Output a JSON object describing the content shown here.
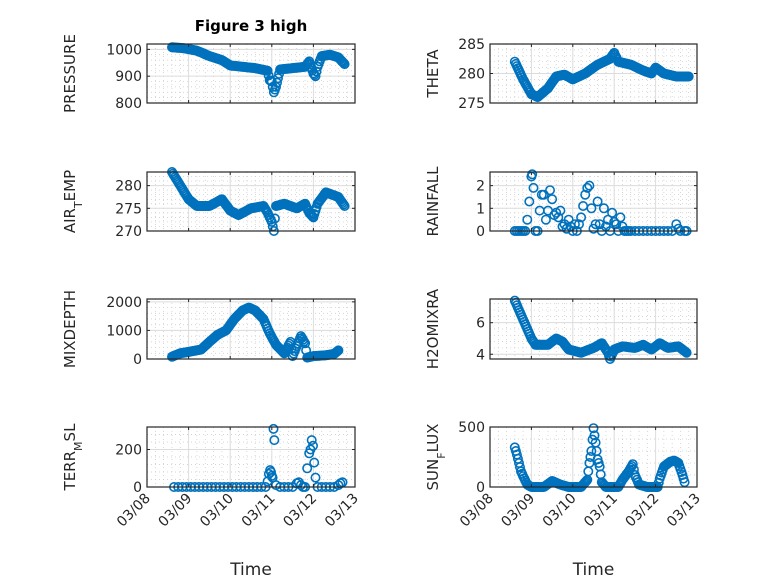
{
  "figure": {
    "title": "Figure 3 high"
  },
  "chart_data": [
    {
      "type": "scatter",
      "title": "Figure 3 high",
      "ylabel": "PRESSURE",
      "xlabel": "",
      "ylim": [
        800,
        1020
      ],
      "yticks": [
        800,
        900,
        1000
      ],
      "xlim": [
        "03/08",
        "03/13"
      ],
      "xticks": [
        "03/08",
        "03/09",
        "03/10",
        "03/11",
        "03/12",
        "03/13"
      ],
      "show_xticklabels": false,
      "grid": true,
      "marker": "circle",
      "color": "#0072BD",
      "key_points": [
        [
          8.6,
          1008
        ],
        [
          8.9,
          1004
        ],
        [
          9.2,
          995
        ],
        [
          9.5,
          975
        ],
        [
          9.8,
          960
        ],
        [
          10.0,
          940
        ],
        [
          10.3,
          935
        ],
        [
          10.6,
          930
        ],
        [
          10.9,
          920
        ],
        [
          10.95,
          885
        ],
        [
          11.0,
          880
        ],
        [
          11.05,
          840
        ],
        [
          11.1,
          860
        ],
        [
          11.2,
          925
        ],
        [
          11.5,
          930
        ],
        [
          11.8,
          935
        ],
        [
          11.9,
          955
        ],
        [
          12.0,
          910
        ],
        [
          12.05,
          900
        ],
        [
          12.1,
          935
        ],
        [
          12.2,
          975
        ],
        [
          12.4,
          980
        ],
        [
          12.6,
          970
        ],
        [
          12.75,
          945
        ]
      ]
    },
    {
      "type": "scatter",
      "title": "",
      "ylabel": "THETA",
      "xlabel": "",
      "ylim": [
        275,
        285
      ],
      "yticks": [
        275,
        280,
        285
      ],
      "xlim": [
        "03/08",
        "03/13"
      ],
      "xticks": [
        "03/08",
        "03/09",
        "03/10",
        "03/11",
        "03/12",
        "03/13"
      ],
      "show_xticklabels": false,
      "grid": true,
      "marker": "circle",
      "color": "#0072BD",
      "key_points": [
        [
          8.6,
          282
        ],
        [
          8.8,
          279
        ],
        [
          9.0,
          276.5
        ],
        [
          9.15,
          276
        ],
        [
          9.4,
          277.5
        ],
        [
          9.6,
          279.5
        ],
        [
          9.8,
          279.8
        ],
        [
          10.0,
          279
        ],
        [
          10.3,
          280
        ],
        [
          10.6,
          281.5
        ],
        [
          10.9,
          282.5
        ],
        [
          11.0,
          283.5
        ],
        [
          11.1,
          282
        ],
        [
          11.4,
          281.5
        ],
        [
          11.7,
          280.5
        ],
        [
          11.9,
          280
        ],
        [
          12.0,
          281
        ],
        [
          12.2,
          280
        ],
        [
          12.5,
          279.5
        ],
        [
          12.8,
          279.5
        ]
      ]
    },
    {
      "type": "scatter",
      "title": "",
      "ylabel": "AIR_TEMP",
      "xlabel": "",
      "ylim": [
        270,
        283
      ],
      "yticks": [
        270,
        275,
        280
      ],
      "xlim": [
        "03/08",
        "03/13"
      ],
      "xticks": [
        "03/08",
        "03/09",
        "03/10",
        "03/11",
        "03/12",
        "03/13"
      ],
      "show_xticklabels": false,
      "grid": true,
      "marker": "circle",
      "color": "#0072BD",
      "key_points": [
        [
          8.6,
          283
        ],
        [
          8.8,
          280
        ],
        [
          9.0,
          277
        ],
        [
          9.2,
          275.5
        ],
        [
          9.5,
          275.5
        ],
        [
          9.8,
          277
        ],
        [
          10.0,
          274.5
        ],
        [
          10.2,
          273.5
        ],
        [
          10.5,
          275
        ],
        [
          10.8,
          275.5
        ],
        [
          10.9,
          274
        ],
        [
          11.0,
          272
        ],
        [
          11.05,
          270
        ],
        [
          11.1,
          275.5
        ],
        [
          11.3,
          276
        ],
        [
          11.6,
          275
        ],
        [
          11.8,
          276
        ],
        [
          11.9,
          274
        ],
        [
          12.0,
          273
        ],
        [
          12.1,
          276
        ],
        [
          12.3,
          278.5
        ],
        [
          12.6,
          277.5
        ],
        [
          12.75,
          275.5
        ]
      ]
    },
    {
      "type": "scatter",
      "title": "",
      "ylabel": "RAINFALL",
      "xlabel": "",
      "ylim": [
        0,
        2.6
      ],
      "yticks": [
        0,
        1,
        2
      ],
      "xlim": [
        "03/08",
        "03/13"
      ],
      "xticks": [
        "03/08",
        "03/09",
        "03/10",
        "03/11",
        "03/12",
        "03/13"
      ],
      "show_xticklabels": false,
      "grid": true,
      "marker": "circle",
      "color": "#0072BD",
      "points": [
        [
          8.6,
          0
        ],
        [
          8.65,
          0
        ],
        [
          8.7,
          0
        ],
        [
          8.75,
          0
        ],
        [
          8.8,
          0
        ],
        [
          8.85,
          0
        ],
        [
          8.9,
          0.5
        ],
        [
          8.95,
          1.3
        ],
        [
          9.0,
          2.4
        ],
        [
          9.02,
          2.5
        ],
        [
          9.05,
          1.9
        ],
        [
          9.1,
          0
        ],
        [
          9.15,
          0
        ],
        [
          9.2,
          0.9
        ],
        [
          9.25,
          1.6
        ],
        [
          9.3,
          1.6
        ],
        [
          9.35,
          0.5
        ],
        [
          9.4,
          0.9
        ],
        [
          9.45,
          1.8
        ],
        [
          9.5,
          1.4
        ],
        [
          9.55,
          0.7
        ],
        [
          9.6,
          0.8
        ],
        [
          9.65,
          0.6
        ],
        [
          9.7,
          0.9
        ],
        [
          9.75,
          0.2
        ],
        [
          9.8,
          0.3
        ],
        [
          9.85,
          0.1
        ],
        [
          9.9,
          0.5
        ],
        [
          9.95,
          0.2
        ],
        [
          10.0,
          0
        ],
        [
          10.05,
          0.3
        ],
        [
          10.1,
          0
        ],
        [
          10.15,
          0.3
        ],
        [
          10.2,
          0.6
        ],
        [
          10.25,
          1.1
        ],
        [
          10.3,
          1.6
        ],
        [
          10.35,
          1.9
        ],
        [
          10.4,
          2.0
        ],
        [
          10.45,
          1.0
        ],
        [
          10.5,
          0.1
        ],
        [
          10.55,
          0.3
        ],
        [
          10.6,
          1.3
        ],
        [
          10.65,
          0.3
        ],
        [
          10.7,
          0
        ],
        [
          10.75,
          1.0
        ],
        [
          10.8,
          0.2
        ],
        [
          10.85,
          0.5
        ],
        [
          10.9,
          0
        ],
        [
          10.95,
          0.8
        ],
        [
          11.0,
          0.4
        ],
        [
          11.05,
          0.3
        ],
        [
          11.1,
          0
        ],
        [
          11.15,
          0.6
        ],
        [
          11.2,
          0.2
        ],
        [
          11.25,
          0
        ],
        [
          11.3,
          0
        ],
        [
          11.35,
          0
        ],
        [
          11.4,
          0
        ],
        [
          11.5,
          0
        ],
        [
          11.6,
          0
        ],
        [
          11.7,
          0
        ],
        [
          11.8,
          0
        ],
        [
          11.9,
          0
        ],
        [
          12.0,
          0
        ],
        [
          12.1,
          0
        ],
        [
          12.2,
          0
        ],
        [
          12.3,
          0
        ],
        [
          12.4,
          0
        ],
        [
          12.5,
          0.3
        ],
        [
          12.55,
          0.1
        ],
        [
          12.6,
          0
        ],
        [
          12.7,
          0
        ],
        [
          12.75,
          0
        ]
      ]
    },
    {
      "type": "scatter",
      "title": "",
      "ylabel": "MIXDEPTH",
      "xlabel": "",
      "ylim": [
        0,
        2100
      ],
      "yticks": [
        0,
        1000,
        2000
      ],
      "xlim": [
        "03/08",
        "03/13"
      ],
      "xticks": [
        "03/08",
        "03/09",
        "03/10",
        "03/11",
        "03/12",
        "03/13"
      ],
      "show_xticklabels": false,
      "grid": true,
      "marker": "circle",
      "color": "#0072BD",
      "key_points": [
        [
          8.6,
          80
        ],
        [
          8.8,
          200
        ],
        [
          9.0,
          250
        ],
        [
          9.3,
          330
        ],
        [
          9.5,
          600
        ],
        [
          9.7,
          850
        ],
        [
          9.9,
          1000
        ],
        [
          10.1,
          1400
        ],
        [
          10.3,
          1700
        ],
        [
          10.45,
          1800
        ],
        [
          10.6,
          1700
        ],
        [
          10.8,
          1400
        ],
        [
          10.95,
          900
        ],
        [
          11.1,
          500
        ],
        [
          11.3,
          200
        ],
        [
          11.45,
          600
        ],
        [
          11.5,
          100
        ],
        [
          11.7,
          800
        ],
        [
          11.8,
          550
        ],
        [
          11.85,
          50
        ],
        [
          12.0,
          100
        ],
        [
          12.3,
          130
        ],
        [
          12.5,
          180
        ],
        [
          12.6,
          300
        ]
      ]
    },
    {
      "type": "scatter",
      "title": "",
      "ylabel": "H2OMIXRA",
      "xlabel": "",
      "ylim": [
        3.7,
        7.5
      ],
      "yticks": [
        4,
        6
      ],
      "xlim": [
        "03/08",
        "03/13"
      ],
      "xticks": [
        "03/08",
        "03/09",
        "03/10",
        "03/11",
        "03/12",
        "03/13"
      ],
      "show_xticklabels": false,
      "grid": true,
      "marker": "circle",
      "color": "#0072BD",
      "key_points": [
        [
          8.6,
          7.4
        ],
        [
          8.8,
          6.2
        ],
        [
          9.0,
          5.0
        ],
        [
          9.1,
          4.6
        ],
        [
          9.4,
          4.6
        ],
        [
          9.6,
          5.0
        ],
        [
          9.75,
          4.8
        ],
        [
          9.9,
          4.3
        ],
        [
          10.2,
          4.1
        ],
        [
          10.5,
          4.4
        ],
        [
          10.7,
          4.7
        ],
        [
          10.85,
          4.1
        ],
        [
          10.9,
          3.7
        ],
        [
          11.0,
          4.3
        ],
        [
          11.2,
          4.5
        ],
        [
          11.5,
          4.4
        ],
        [
          11.7,
          4.6
        ],
        [
          11.9,
          4.3
        ],
        [
          12.1,
          4.7
        ],
        [
          12.3,
          4.4
        ],
        [
          12.55,
          4.5
        ],
        [
          12.75,
          4.1
        ]
      ]
    },
    {
      "type": "scatter",
      "title": "",
      "ylabel": "TERR_MSL",
      "xlabel": "Time",
      "ylim": [
        0,
        320
      ],
      "yticks": [
        0,
        200
      ],
      "xlim": [
        "03/08",
        "03/13"
      ],
      "xticks": [
        "03/08",
        "03/09",
        "03/10",
        "03/11",
        "03/12",
        "03/13"
      ],
      "show_xticklabels": true,
      "grid": true,
      "marker": "circle",
      "color": "#0072BD",
      "points": [
        [
          8.65,
          0
        ],
        [
          8.75,
          0
        ],
        [
          8.85,
          0
        ],
        [
          8.95,
          0
        ],
        [
          9.05,
          0
        ],
        [
          9.15,
          0
        ],
        [
          9.25,
          0
        ],
        [
          9.35,
          0
        ],
        [
          9.45,
          0
        ],
        [
          9.55,
          0
        ],
        [
          9.65,
          0
        ],
        [
          9.75,
          0
        ],
        [
          9.85,
          0
        ],
        [
          9.95,
          0
        ],
        [
          10.05,
          0
        ],
        [
          10.15,
          0
        ],
        [
          10.25,
          0
        ],
        [
          10.35,
          0
        ],
        [
          10.45,
          0
        ],
        [
          10.55,
          0
        ],
        [
          10.65,
          0
        ],
        [
          10.75,
          0
        ],
        [
          10.85,
          0
        ],
        [
          10.9,
          30
        ],
        [
          10.93,
          70
        ],
        [
          10.96,
          90
        ],
        [
          10.98,
          80
        ],
        [
          11.0,
          60
        ],
        [
          11.02,
          50
        ],
        [
          11.04,
          310
        ],
        [
          11.06,
          250
        ],
        [
          11.1,
          10
        ],
        [
          11.2,
          0
        ],
        [
          11.3,
          0
        ],
        [
          11.4,
          0
        ],
        [
          11.5,
          0
        ],
        [
          11.6,
          20
        ],
        [
          11.65,
          25
        ],
        [
          11.7,
          10
        ],
        [
          11.75,
          0
        ],
        [
          11.8,
          0
        ],
        [
          11.85,
          100
        ],
        [
          11.9,
          180
        ],
        [
          11.93,
          200
        ],
        [
          11.96,
          250
        ],
        [
          11.99,
          220
        ],
        [
          12.02,
          130
        ],
        [
          12.05,
          50
        ],
        [
          12.1,
          0
        ],
        [
          12.2,
          0
        ],
        [
          12.3,
          0
        ],
        [
          12.4,
          0
        ],
        [
          12.5,
          0
        ],
        [
          12.6,
          10
        ],
        [
          12.65,
          20
        ],
        [
          12.7,
          25
        ]
      ]
    },
    {
      "type": "scatter",
      "title": "",
      "ylabel": "SUN_FLUX",
      "xlabel": "Time",
      "ylim": [
        0,
        500
      ],
      "yticks": [
        0,
        500
      ],
      "xlim": [
        "03/08",
        "03/13"
      ],
      "xticks": [
        "03/08",
        "03/09",
        "03/10",
        "03/11",
        "03/12",
        "03/13"
      ],
      "show_xticklabels": true,
      "grid": true,
      "marker": "circle",
      "color": "#0072BD",
      "key_points": [
        [
          8.6,
          330
        ],
        [
          8.65,
          270
        ],
        [
          8.7,
          200
        ],
        [
          8.75,
          130
        ],
        [
          8.8,
          90
        ],
        [
          8.9,
          20
        ],
        [
          9.0,
          0
        ],
        [
          9.3,
          0
        ],
        [
          9.5,
          50
        ],
        [
          9.7,
          20
        ],
        [
          9.9,
          0
        ],
        [
          10.2,
          0
        ],
        [
          10.35,
          60
        ],
        [
          10.4,
          200
        ],
        [
          10.45,
          300
        ],
        [
          10.5,
          490
        ],
        [
          10.55,
          370
        ],
        [
          10.6,
          230
        ],
        [
          10.65,
          170
        ],
        [
          10.7,
          40
        ],
        [
          10.8,
          0
        ],
        [
          11.1,
          0
        ],
        [
          11.2,
          60
        ],
        [
          11.35,
          130
        ],
        [
          11.45,
          190
        ],
        [
          11.5,
          100
        ],
        [
          11.6,
          20
        ],
        [
          11.8,
          0
        ],
        [
          12.05,
          0
        ],
        [
          12.1,
          70
        ],
        [
          12.2,
          170
        ],
        [
          12.35,
          210
        ],
        [
          12.45,
          220
        ],
        [
          12.55,
          200
        ],
        [
          12.65,
          100
        ],
        [
          12.7,
          40
        ]
      ]
    }
  ]
}
